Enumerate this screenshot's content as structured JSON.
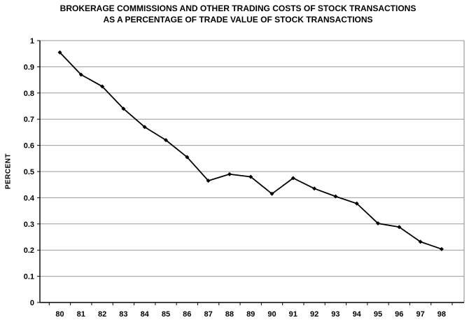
{
  "chart": {
    "title_line1": "BROKERAGE COMMISSIONS AND OTHER TRADING COSTS OF STOCK TRANSACTIONS",
    "title_line2": "AS A PERCENTAGE OF TRADE VALUE OF STOCK TRANSACTIONS",
    "ylabel": "PERCENT"
  },
  "chart_data": {
    "type": "line",
    "title": "BROKERAGE COMMISSIONS AND OTHER TRADING COSTS OF STOCK TRANSACTIONS AS A PERCENTAGE OF TRADE VALUE OF STOCK TRANSACTIONS",
    "xlabel": "",
    "ylabel": "PERCENT",
    "categories": [
      "80",
      "81",
      "82",
      "83",
      "84",
      "85",
      "86",
      "87",
      "88",
      "89",
      "90",
      "91",
      "92",
      "93",
      "94",
      "95",
      "96",
      "97",
      "98"
    ],
    "values": [
      0.955,
      0.87,
      0.825,
      0.74,
      0.67,
      0.62,
      0.555,
      0.465,
      0.49,
      0.48,
      0.415,
      0.475,
      0.435,
      0.405,
      0.378,
      0.302,
      0.288,
      0.232,
      0.204
    ],
    "ylim": [
      0,
      1
    ],
    "ytick_step": 0.1,
    "ytick_labels": [
      "0",
      "0.1",
      "0.2",
      "0.3",
      "0.4",
      "0.5",
      "0.6",
      "0.7",
      "0.8",
      "0.9",
      "1"
    ],
    "grid": true,
    "legend": false,
    "line_color": "#000000",
    "marker": "diamond",
    "marker_color": "#000000",
    "gridline_color": "#999999",
    "axis_color": "#000000",
    "border_color": "#999999",
    "background": "#ffffff"
  }
}
